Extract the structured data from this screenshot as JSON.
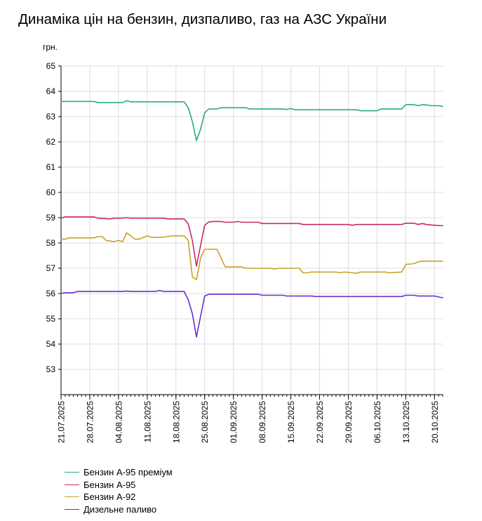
{
  "title": "Динаміка цін на бензин, дизпаливо, газ на АЗС України",
  "chart_data": {
    "type": "line",
    "title": "Динаміка цін на бензин, дизпаливо, газ на АЗС України",
    "ylabel": "грн.",
    "xlabel": "",
    "ylim": [
      52,
      65
    ],
    "yticks": [
      53,
      54,
      55,
      56,
      57,
      58,
      59,
      60,
      61,
      62,
      63,
      64,
      65
    ],
    "xlim": [
      "2025-07-21",
      "2025-10-22"
    ],
    "xtick_labels": [
      "21.07.2025",
      "28.07.2025",
      "04.08.2025",
      "11.08.2025",
      "18.08.2025",
      "25.08.2025",
      "01.09.2025",
      "08.09.2025",
      "15.09.2025",
      "22.09.2025",
      "29.09.2025",
      "06.10.2025",
      "13.10.2025",
      "20.10.2025"
    ],
    "grid": true,
    "legend_position": "bottom-left",
    "series": [
      {
        "name": "Бензин А-95 преміум",
        "color": "#2aa88a",
        "points": [
          [
            "2025-07-21",
            63.6
          ],
          [
            "2025-07-25",
            63.6
          ],
          [
            "2025-07-29",
            63.6
          ],
          [
            "2025-07-30",
            63.55
          ],
          [
            "2025-08-05",
            63.55
          ],
          [
            "2025-08-06",
            63.63
          ],
          [
            "2025-08-07",
            63.58
          ],
          [
            "2025-08-20",
            63.58
          ],
          [
            "2025-08-21",
            63.35
          ],
          [
            "2025-08-22",
            62.8
          ],
          [
            "2025-08-23",
            62.05
          ],
          [
            "2025-08-24",
            62.5
          ],
          [
            "2025-08-25",
            63.15
          ],
          [
            "2025-08-26",
            63.3
          ],
          [
            "2025-08-28",
            63.3
          ],
          [
            "2025-08-29",
            63.35
          ],
          [
            "2025-09-04",
            63.35
          ],
          [
            "2025-09-05",
            63.3
          ],
          [
            "2025-09-13",
            63.3
          ],
          [
            "2025-09-14",
            63.28
          ],
          [
            "2025-09-15",
            63.32
          ],
          [
            "2025-09-16",
            63.27
          ],
          [
            "2025-10-01",
            63.27
          ],
          [
            "2025-10-02",
            63.23
          ],
          [
            "2025-10-06",
            63.23
          ],
          [
            "2025-10-07",
            63.3
          ],
          [
            "2025-10-12",
            63.3
          ],
          [
            "2025-10-13",
            63.47
          ],
          [
            "2025-10-15",
            63.47
          ],
          [
            "2025-10-16",
            63.43
          ],
          [
            "2025-10-17",
            63.47
          ],
          [
            "2025-10-18",
            63.46
          ],
          [
            "2025-10-19",
            63.43
          ],
          [
            "2025-10-21",
            63.43
          ],
          [
            "2025-10-22",
            63.4
          ]
        ]
      },
      {
        "name": "Бензин А-95",
        "color": "#c82a6c",
        "points": [
          [
            "2025-07-21",
            58.98
          ],
          [
            "2025-07-22",
            59.03
          ],
          [
            "2025-07-29",
            59.03
          ],
          [
            "2025-07-30",
            58.98
          ],
          [
            "2025-08-02",
            58.95
          ],
          [
            "2025-08-03",
            58.98
          ],
          [
            "2025-08-05",
            58.98
          ],
          [
            "2025-08-06",
            59.0
          ],
          [
            "2025-08-07",
            58.98
          ],
          [
            "2025-08-15",
            58.98
          ],
          [
            "2025-08-16",
            58.95
          ],
          [
            "2025-08-20",
            58.95
          ],
          [
            "2025-08-21",
            58.75
          ],
          [
            "2025-08-22",
            58.1
          ],
          [
            "2025-08-23",
            57.08
          ],
          [
            "2025-08-24",
            57.9
          ],
          [
            "2025-08-25",
            58.7
          ],
          [
            "2025-08-26",
            58.83
          ],
          [
            "2025-08-27",
            58.85
          ],
          [
            "2025-08-29",
            58.85
          ],
          [
            "2025-08-30",
            58.82
          ],
          [
            "2025-09-01",
            58.82
          ],
          [
            "2025-09-02",
            58.85
          ],
          [
            "2025-09-03",
            58.82
          ],
          [
            "2025-09-07",
            58.82
          ],
          [
            "2025-09-08",
            58.77
          ],
          [
            "2025-09-17",
            58.77
          ],
          [
            "2025-09-18",
            58.73
          ],
          [
            "2025-09-29",
            58.73
          ],
          [
            "2025-09-30",
            58.7
          ],
          [
            "2025-10-01",
            58.73
          ],
          [
            "2025-10-12",
            58.73
          ],
          [
            "2025-10-13",
            58.78
          ],
          [
            "2025-10-15",
            58.78
          ],
          [
            "2025-10-16",
            58.73
          ],
          [
            "2025-10-17",
            58.77
          ],
          [
            "2025-10-18",
            58.73
          ],
          [
            "2025-10-20",
            58.7
          ],
          [
            "2025-10-22",
            58.68
          ]
        ]
      },
      {
        "name": "Бензин А-92",
        "color": "#c9a227",
        "points": [
          [
            "2025-07-21",
            58.15
          ],
          [
            "2025-07-22",
            58.15
          ],
          [
            "2025-07-23",
            58.2
          ],
          [
            "2025-07-29",
            58.2
          ],
          [
            "2025-07-30",
            58.25
          ],
          [
            "2025-07-31",
            58.25
          ],
          [
            "2025-08-01",
            58.1
          ],
          [
            "2025-08-03",
            58.05
          ],
          [
            "2025-08-04",
            58.1
          ],
          [
            "2025-08-05",
            58.05
          ],
          [
            "2025-08-06",
            58.4
          ],
          [
            "2025-08-08",
            58.15
          ],
          [
            "2025-08-09",
            58.15
          ],
          [
            "2025-08-11",
            58.28
          ],
          [
            "2025-08-12",
            58.22
          ],
          [
            "2025-08-14",
            58.22
          ],
          [
            "2025-08-16",
            58.25
          ],
          [
            "2025-08-17",
            58.28
          ],
          [
            "2025-08-20",
            58.28
          ],
          [
            "2025-08-21",
            58.1
          ],
          [
            "2025-08-22",
            56.65
          ],
          [
            "2025-08-23",
            56.55
          ],
          [
            "2025-08-24",
            57.4
          ],
          [
            "2025-08-25",
            57.75
          ],
          [
            "2025-08-28",
            57.75
          ],
          [
            "2025-08-30",
            57.05
          ],
          [
            "2025-09-03",
            57.05
          ],
          [
            "2025-09-04",
            57.0
          ],
          [
            "2025-09-10",
            57.0
          ],
          [
            "2025-09-11",
            56.97
          ],
          [
            "2025-09-12",
            57.0
          ],
          [
            "2025-09-17",
            57.0
          ],
          [
            "2025-09-18",
            56.82
          ],
          [
            "2025-09-19",
            56.82
          ],
          [
            "2025-09-20",
            56.85
          ],
          [
            "2025-09-26",
            56.85
          ],
          [
            "2025-09-27",
            56.82
          ],
          [
            "2025-09-28",
            56.85
          ],
          [
            "2025-09-30",
            56.82
          ],
          [
            "2025-10-01",
            56.8
          ],
          [
            "2025-10-02",
            56.85
          ],
          [
            "2025-10-08",
            56.85
          ],
          [
            "2025-10-09",
            56.82
          ],
          [
            "2025-10-12",
            56.85
          ],
          [
            "2025-10-13",
            57.15
          ],
          [
            "2025-10-15",
            57.18
          ],
          [
            "2025-10-16",
            57.25
          ],
          [
            "2025-10-17",
            57.28
          ],
          [
            "2025-10-22",
            57.28
          ]
        ]
      },
      {
        "name": "Дизельне паливо",
        "color": "#6a2fd1",
        "points": [
          [
            "2025-07-21",
            56.0
          ],
          [
            "2025-07-22",
            56.03
          ],
          [
            "2025-07-24",
            56.03
          ],
          [
            "2025-07-25",
            56.08
          ],
          [
            "2025-08-05",
            56.08
          ],
          [
            "2025-08-06",
            56.1
          ],
          [
            "2025-08-07",
            56.08
          ],
          [
            "2025-08-13",
            56.08
          ],
          [
            "2025-08-14",
            56.12
          ],
          [
            "2025-08-15",
            56.08
          ],
          [
            "2025-08-20",
            56.08
          ],
          [
            "2025-08-21",
            55.75
          ],
          [
            "2025-08-22",
            55.2
          ],
          [
            "2025-08-23",
            54.28
          ],
          [
            "2025-08-24",
            55.1
          ],
          [
            "2025-08-25",
            55.9
          ],
          [
            "2025-08-26",
            55.97
          ],
          [
            "2025-09-07",
            55.97
          ],
          [
            "2025-09-08",
            55.93
          ],
          [
            "2025-09-13",
            55.93
          ],
          [
            "2025-09-14",
            55.9
          ],
          [
            "2025-09-20",
            55.9
          ],
          [
            "2025-09-21",
            55.88
          ],
          [
            "2025-10-12",
            55.88
          ],
          [
            "2025-10-13",
            55.93
          ],
          [
            "2025-10-15",
            55.93
          ],
          [
            "2025-10-16",
            55.9
          ],
          [
            "2025-10-20",
            55.9
          ],
          [
            "2025-10-22",
            55.83
          ]
        ]
      }
    ]
  }
}
